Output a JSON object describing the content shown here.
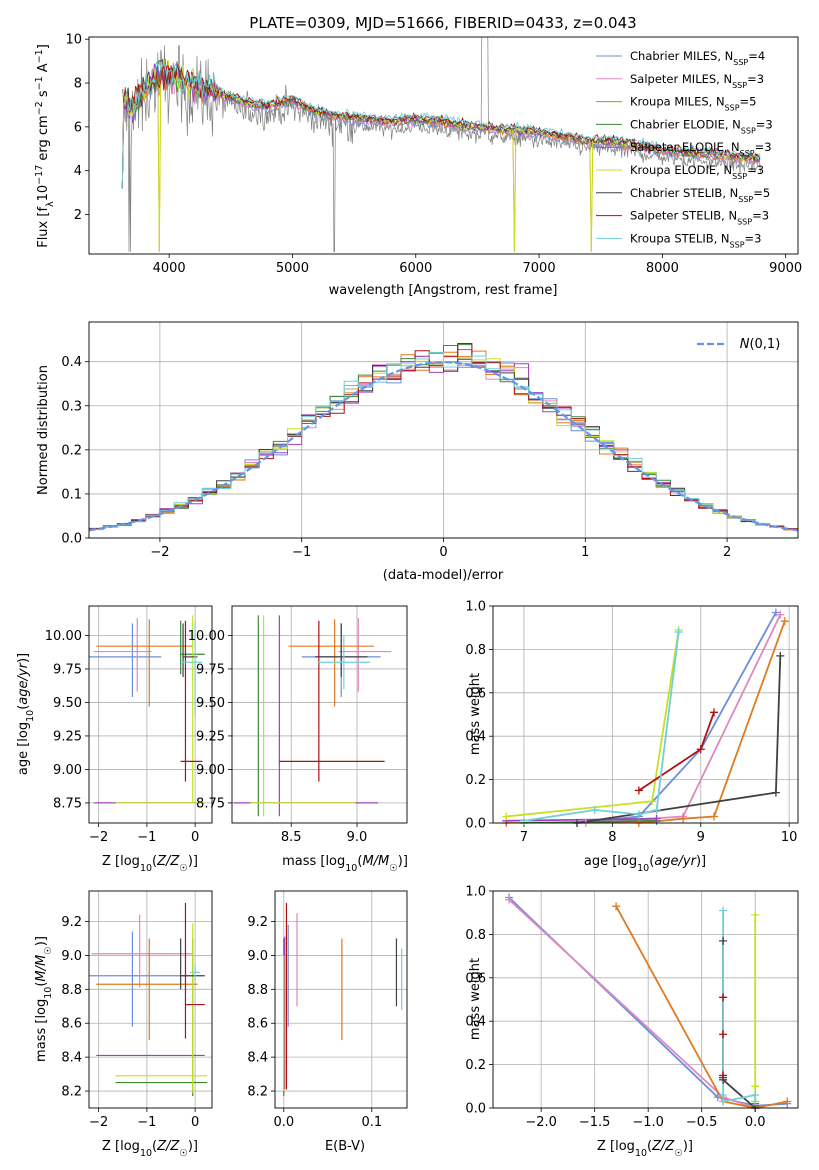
{
  "title": "PLATE=0309, MJD=51666, FIBERID=0433, z=0.043",
  "colors": {
    "Chabrier MILES": "#6a8fdc",
    "Salpeter MILES": "#e088c0",
    "Kroupa MILES": "#e07a20",
    "Chabrier ELODIE": "#3a8a3a",
    "Salpeter ELODIE": "#a040c0",
    "Kroupa ELODIE": "#c8e020",
    "Chabrier STELIB": "#404040",
    "Salpeter STELIB": "#b01010",
    "Kroupa STELIB": "#70d0d8",
    "data": "#808080",
    "normal": "#6495ed"
  },
  "chart_data": [
    {
      "type": "line",
      "title": "PLATE=0309, MJD=51666, FIBERID=0433, z=0.043",
      "xlabel": "wavelength [Angstrom, rest frame]",
      "ylabel": "Flux [f_λ 10^-17 erg cm^-2 s^-1 A^-1]",
      "xlim": [
        3350,
        9100
      ],
      "ylim": [
        0.2,
        10.1
      ],
      "xticks": [
        4000,
        5000,
        6000,
        7000,
        8000,
        9000
      ],
      "yticks": [
        2,
        4,
        6,
        8,
        10
      ],
      "legend_position": "top-right",
      "legend": [
        {
          "name": "Chabrier MILES",
          "text": "Chabrier MILES, N",
          "sub": "SSP",
          "suffix": "=4"
        },
        {
          "name": "Salpeter MILES",
          "text": "Salpeter MILES, N",
          "sub": "SSP",
          "suffix": "=3"
        },
        {
          "name": "Kroupa MILES",
          "text": "Kroupa MILES, N",
          "sub": "SSP",
          "suffix": "=5"
        },
        {
          "name": "Chabrier ELODIE",
          "text": "Chabrier ELODIE, N",
          "sub": "SSP",
          "suffix": "=3"
        },
        {
          "name": "Salpeter ELODIE",
          "text": "Salpeter ELODIE, N",
          "sub": "SSP",
          "suffix": "=3"
        },
        {
          "name": "Kroupa ELODIE",
          "text": "Kroupa ELODIE, N",
          "sub": "SSP",
          "suffix": "=3"
        },
        {
          "name": "Chabrier STELIB",
          "text": "Chabrier STELIB, N",
          "sub": "SSP",
          "suffix": "=5"
        },
        {
          "name": "Salpeter STELIB",
          "text": "Salpeter STELIB, N",
          "sub": "SSP",
          "suffix": "=3"
        },
        {
          "name": "Kroupa STELIB",
          "text": "Kroupa STELIB, N",
          "sub": "SSP",
          "suffix": "=3"
        }
      ],
      "continuum": {
        "x": [
          3620,
          3700,
          3800,
          3900,
          4000,
          4100,
          4200,
          4400,
          4600,
          4800,
          5000,
          5200,
          5400,
          5600,
          5800,
          6000,
          6200,
          6400,
          6600,
          6800,
          7000,
          7200,
          7400,
          7600,
          7800,
          8000,
          8200,
          8400,
          8600,
          8800
        ],
        "y": [
          6.8,
          6.5,
          7.4,
          8.0,
          8.0,
          7.8,
          7.6,
          7.2,
          6.8,
          6.6,
          6.9,
          6.3,
          6.1,
          6.0,
          5.9,
          6.0,
          5.9,
          5.7,
          5.6,
          5.5,
          5.4,
          5.2,
          5.0,
          5.0,
          4.8,
          4.6,
          4.5,
          4.4,
          4.3,
          4.2
        ]
      },
      "dips": [
        {
          "x": 3915,
          "y": 0.3
        },
        {
          "x": 5750,
          "y": 0.3
        },
        {
          "x": 6800,
          "y": 0.3
        },
        {
          "x": 7420,
          "y": 0.3
        }
      ]
    },
    {
      "type": "bar",
      "xlabel": "(data-model)/error",
      "ylabel": "Normed distribution",
      "xlim": [
        -2.5,
        2.5
      ],
      "ylim": [
        0,
        0.49
      ],
      "xticks": [
        -2,
        -1,
        0,
        1,
        2
      ],
      "yticks": [
        0.0,
        0.1,
        0.2,
        0.3,
        0.4
      ],
      "legend_position": "top-right",
      "legend_label": "N(0,1)",
      "bin_width": 0.1
    },
    {
      "type": "scatter",
      "xlabel": "Z [log10(Z/Z☉)]",
      "ylabel": "age [log10(age/yr)]",
      "xlim": [
        -2.2,
        0.35
      ],
      "ylim": [
        8.6,
        10.22
      ],
      "xticks": [
        -2,
        -1,
        0
      ],
      "yticks": [
        8.75,
        9.0,
        9.25,
        9.5,
        9.75,
        10.0
      ],
      "points": [
        {
          "series": "Chabrier MILES",
          "x": -1.3,
          "y": 9.84,
          "xerr": [
            0.9,
            0.6
          ],
          "yerr": [
            0.3,
            0.25
          ]
        },
        {
          "series": "Salpeter MILES",
          "x": -1.2,
          "y": 9.88,
          "xerr": [
            0.9,
            0.3
          ],
          "yerr": [
            0.3,
            0.25
          ]
        },
        {
          "series": "Kroupa MILES",
          "x": -0.95,
          "y": 9.92,
          "xerr": [
            1.1,
            0.9
          ],
          "yerr": [
            0.45,
            0.2
          ]
        },
        {
          "series": "Chabrier ELODIE",
          "x": -0.3,
          "y": 9.86,
          "xerr": [
            0,
            0.5
          ],
          "yerr": [
            0.15,
            0.25
          ]
        },
        {
          "series": "Salpeter ELODIE",
          "x": -0.1,
          "y": 8.75,
          "xerr": [
            2.0,
            0.2
          ],
          "yerr": [
            0,
            0
          ]
        },
        {
          "series": "Kroupa ELODIE",
          "x": -0.05,
          "y": 8.75,
          "xerr": [
            1.6,
            0.25
          ],
          "yerr": [
            0,
            1.4
          ]
        },
        {
          "series": "Chabrier STELIB",
          "x": -0.25,
          "y": 9.84,
          "xerr": [
            0,
            0.3
          ],
          "yerr": [
            0.15,
            0.25
          ]
        },
        {
          "series": "Salpeter STELIB",
          "x": -0.2,
          "y": 9.06,
          "xerr": [
            0.1,
            0.35
          ],
          "yerr": [
            0.15,
            1.05
          ]
        },
        {
          "series": "Kroupa STELIB",
          "x": 0.0,
          "y": 9.8,
          "xerr": [
            0.3,
            0.15
          ],
          "yerr": [
            0.4,
            0.3
          ]
        }
      ]
    },
    {
      "type": "scatter",
      "xlabel": "mass [log10(M/M☉)]",
      "ylabel": "",
      "xlim": [
        8.05,
        9.38
      ],
      "ylim": [
        8.6,
        10.22
      ],
      "xticks": [
        8.5,
        9.0
      ],
      "yticks": [
        8.75,
        9.0,
        9.25,
        9.5,
        9.75,
        10.0
      ],
      "points": [
        {
          "series": "Chabrier MILES",
          "x": 8.88,
          "y": 9.84,
          "xerr": [
            0.3,
            0.3
          ],
          "yerr": [
            0.3,
            0.25
          ]
        },
        {
          "series": "Salpeter MILES",
          "x": 9.01,
          "y": 9.88,
          "xerr": [
            0.15,
            0.25
          ],
          "yerr": [
            0.3,
            0.25
          ]
        },
        {
          "series": "Kroupa MILES",
          "x": 8.83,
          "y": 9.92,
          "xerr": [
            0.35,
            0.3
          ],
          "yerr": [
            0.45,
            0.2
          ]
        },
        {
          "series": "Chabrier ELODIE",
          "x": 8.25,
          "y": 8.75,
          "xerr": [
            0,
            0
          ],
          "yerr": [
            0.1,
            1.4
          ]
        },
        {
          "series": "Salpeter ELODIE",
          "x": 8.41,
          "y": 8.75,
          "xerr": [
            0.35,
            0.75
          ],
          "yerr": [
            0.1,
            1.4
          ]
        },
        {
          "series": "Kroupa ELODIE",
          "x": 8.29,
          "y": 8.75,
          "xerr": [
            0.1,
            0.7
          ],
          "yerr": [
            0.1,
            1.4
          ]
        },
        {
          "series": "Chabrier STELIB",
          "x": 8.88,
          "y": 9.84,
          "xerr": [
            0.2,
            0.2
          ],
          "yerr": [
            0.15,
            0.25
          ]
        },
        {
          "series": "Salpeter STELIB",
          "x": 8.71,
          "y": 9.06,
          "xerr": [
            0.3,
            0.5
          ],
          "yerr": [
            0.15,
            1.05
          ]
        },
        {
          "series": "Kroupa STELIB",
          "x": 8.9,
          "y": 9.8,
          "xerr": [
            0.2,
            0.2
          ],
          "yerr": [
            0.2,
            0.2
          ]
        }
      ]
    },
    {
      "type": "line",
      "xlabel": "age [log10(age/yr)]",
      "ylabel": "mass weight",
      "xlim": [
        6.65,
        10.1
      ],
      "ylim": [
        0,
        1.0
      ],
      "xticks": [
        7,
        8,
        9,
        10
      ],
      "yticks": [
        0.0,
        0.2,
        0.4,
        0.6,
        0.8,
        1.0
      ],
      "series": [
        {
          "name": "Chabrier MILES",
          "x": [
            7.6,
            8.3,
            9.0,
            9.85
          ],
          "y": [
            0.0,
            0.03,
            0.34,
            0.97
          ]
        },
        {
          "name": "Salpeter MILES",
          "x": [
            7.7,
            8.8,
            9.9
          ],
          "y": [
            0.0,
            0.03,
            0.96
          ]
        },
        {
          "name": "Kroupa MILES",
          "x": [
            6.8,
            8.3,
            8.8,
            9.15,
            9.95
          ],
          "y": [
            0.0,
            0.0,
            0.02,
            0.03,
            0.93
          ]
        },
        {
          "name": "Chabrier ELODIE",
          "x": [
            7.0,
            8.5
          ],
          "y": [
            0.0,
            0.01
          ]
        },
        {
          "name": "Salpeter ELODIE",
          "x": [
            6.8,
            8.5
          ],
          "y": [
            0.01,
            0.02
          ]
        },
        {
          "name": "Kroupa ELODIE",
          "x": [
            6.8,
            8.45,
            8.75
          ],
          "y": [
            0.03,
            0.1,
            0.89
          ]
        },
        {
          "name": "Chabrier STELIB",
          "x": [
            7.6,
            9.85,
            9.9
          ],
          "y": [
            0.0,
            0.14,
            0.77
          ]
        },
        {
          "name": "Salpeter STELIB",
          "x": [
            8.3,
            9.0,
            9.15
          ],
          "y": [
            0.15,
            0.34,
            0.51
          ]
        },
        {
          "name": "Kroupa STELIB",
          "x": [
            7.0,
            7.8,
            8.3,
            8.5,
            8.75
          ],
          "y": [
            0.01,
            0.06,
            0.04,
            0.06,
            0.88
          ]
        }
      ]
    },
    {
      "type": "scatter",
      "xlabel": "Z [log10(Z/Z☉)]",
      "ylabel": "mass [log10(M/M☉)]",
      "xlim": [
        -2.2,
        0.35
      ],
      "ylim": [
        8.1,
        9.38
      ],
      "xticks": [
        -2,
        -1,
        0
      ],
      "yticks": [
        8.2,
        8.4,
        8.6,
        8.8,
        9.0,
        9.2
      ],
      "points": [
        {
          "series": "Chabrier MILES",
          "x": -1.3,
          "y": 8.88,
          "xerr": [
            0.9,
            1.2
          ],
          "yerr": [
            0.3,
            0.26
          ]
        },
        {
          "series": "Salpeter MILES",
          "x": -1.15,
          "y": 9.01,
          "xerr": [
            1.0,
            1.1
          ],
          "yerr": [
            0.2,
            0.23
          ]
        },
        {
          "series": "Kroupa MILES",
          "x": -0.95,
          "y": 8.83,
          "xerr": [
            1.1,
            1.0
          ],
          "yerr": [
            0.33,
            0.27
          ]
        },
        {
          "series": "Chabrier ELODIE",
          "x": -0.05,
          "y": 8.25,
          "xerr": [
            1.6,
            0.3
          ],
          "yerr": [
            0.08,
            0.85
          ]
        },
        {
          "series": "Salpeter ELODIE",
          "x": -0.05,
          "y": 8.41,
          "xerr": [
            2.0,
            0.25
          ],
          "yerr": [
            0,
            0
          ]
        },
        {
          "series": "Kroupa ELODIE",
          "x": -0.05,
          "y": 8.29,
          "xerr": [
            1.6,
            0.3
          ],
          "yerr": [
            0.1,
            0.9
          ]
        },
        {
          "series": "Chabrier STELIB",
          "x": -0.3,
          "y": 8.88,
          "xerr": [
            0.0,
            0.5
          ],
          "yerr": [
            0.08,
            0.22
          ]
        },
        {
          "series": "Salpeter STELIB",
          "x": -0.2,
          "y": 8.71,
          "xerr": [
            0.0,
            0.4
          ],
          "yerr": [
            0.2,
            0.6
          ]
        },
        {
          "series": "Kroupa STELIB",
          "x": 0.0,
          "y": 8.9,
          "xerr": [
            0.1,
            0.1
          ],
          "yerr": [
            0.05,
            0.05
          ]
        }
      ]
    },
    {
      "type": "scatter",
      "xlabel": "E(B-V)",
      "ylabel": "",
      "xlim": [
        -0.01,
        0.14
      ],
      "ylim": [
        8.1,
        9.38
      ],
      "xticks": [
        0.0,
        0.1
      ],
      "yticks": [
        8.2,
        8.4,
        8.6,
        8.8,
        9.0,
        9.2
      ],
      "points": [
        {
          "series": "Chabrier MILES",
          "x": 0.005,
          "y": 8.88,
          "xerr": [
            0,
            0
          ],
          "yerr": [
            0.3,
            0.3
          ]
        },
        {
          "series": "Salpeter MILES",
          "x": 0.015,
          "y": 9.0,
          "xerr": [
            0,
            0
          ],
          "yerr": [
            0.3,
            0.25
          ]
        },
        {
          "series": "Kroupa MILES",
          "x": 0.066,
          "y": 8.8,
          "xerr": [
            0,
            0
          ],
          "yerr": [
            0.3,
            0.3
          ]
        },
        {
          "series": "Chabrier ELODIE",
          "x": 0.0,
          "y": 8.25,
          "xerr": [
            0,
            0
          ],
          "yerr": [
            0.08,
            0.85
          ]
        },
        {
          "series": "Salpeter ELODIE",
          "x": 0.001,
          "y": 8.41,
          "xerr": [
            0,
            0
          ],
          "yerr": [
            0.2,
            0.7
          ]
        },
        {
          "series": "Kroupa ELODIE",
          "x": 0.0,
          "y": 8.5,
          "xerr": [
            0,
            0
          ],
          "yerr": [
            0.3,
            0.5
          ]
        },
        {
          "series": "Chabrier STELIB",
          "x": 0.128,
          "y": 8.9,
          "xerr": [
            0,
            0
          ],
          "yerr": [
            0.2,
            0.2
          ]
        },
        {
          "series": "Salpeter STELIB",
          "x": 0.003,
          "y": 8.71,
          "xerr": [
            0,
            0
          ],
          "yerr": [
            0.5,
            0.6
          ]
        },
        {
          "series": "Kroupa STELIB",
          "x": 0.134,
          "y": 8.86,
          "xerr": [
            0,
            0
          ],
          "yerr": [
            0.18,
            0.18
          ]
        }
      ]
    },
    {
      "type": "line",
      "xlabel": "Z [log10(Z/Z☉)]",
      "ylabel": "mass weight",
      "xlim": [
        -2.45,
        0.4
      ],
      "ylim": [
        0,
        1.0
      ],
      "xticks": [
        -2.0,
        -1.5,
        -1.0,
        -0.5,
        0.0
      ],
      "yticks": [
        0.0,
        0.2,
        0.4,
        0.6,
        0.8,
        1.0
      ],
      "series": [
        {
          "name": "Chabrier MILES",
          "x": [
            -2.3,
            -0.35,
            0.0,
            0.3
          ],
          "y": [
            0.97,
            0.05,
            0.01,
            0.02
          ]
        },
        {
          "name": "Salpeter MILES",
          "x": [
            -2.3,
            -0.3,
            0.0
          ],
          "y": [
            0.96,
            0.05,
            0.0
          ]
        },
        {
          "name": "Kroupa MILES",
          "x": [
            -1.3,
            -0.3,
            0.0,
            0.3
          ],
          "y": [
            0.93,
            0.03,
            0.0,
            0.03
          ]
        },
        {
          "name": "Chabrier ELODIE",
          "x": [
            0.0,
            0.0
          ],
          "y": [
            0.0,
            0.01
          ]
        },
        {
          "name": "Salpeter ELODIE",
          "x": [
            0.0,
            0.0
          ],
          "y": [
            0.0,
            0.02
          ]
        },
        {
          "name": "Kroupa ELODIE",
          "x": [
            0.0,
            0.0,
            0.0
          ],
          "y": [
            0.03,
            0.1,
            0.89
          ]
        },
        {
          "name": "Chabrier STELIB",
          "x": [
            -0.3,
            -0.3,
            -0.3,
            0.0
          ],
          "y": [
            0.77,
            0.14,
            0.13,
            0.0
          ]
        },
        {
          "name": "Salpeter STELIB",
          "x": [
            -0.3,
            -0.3,
            -0.3
          ],
          "y": [
            0.51,
            0.34,
            0.15
          ]
        },
        {
          "name": "Kroupa STELIB",
          "x": [
            -0.3,
            -0.3,
            -0.3,
            0.0,
            0.0
          ],
          "y": [
            0.91,
            0.06,
            0.03,
            0.06,
            0.03
          ]
        }
      ]
    }
  ]
}
